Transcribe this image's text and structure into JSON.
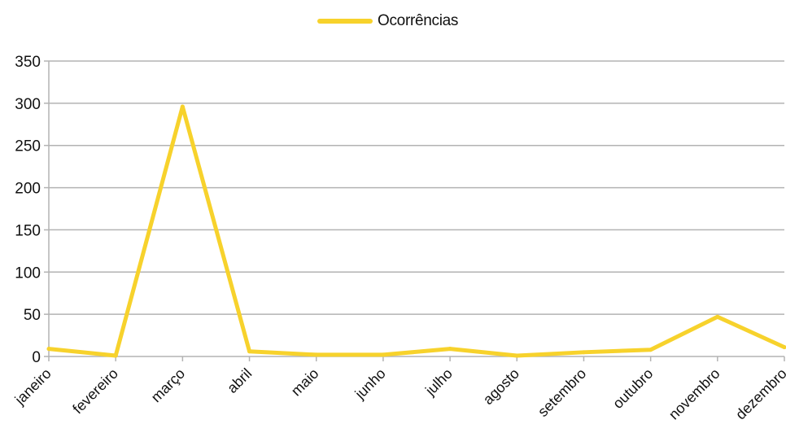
{
  "colors": {
    "series": "#F7D22C",
    "grid": "#B3B3B3",
    "axis": "#B3B3B3",
    "text": "#111111"
  },
  "chart_data": {
    "type": "line",
    "title": "",
    "xlabel": "",
    "ylabel": "",
    "categories": [
      "janeiro",
      "fevereiro",
      "março",
      "abril",
      "maio",
      "junho",
      "julho",
      "agosto",
      "setembro",
      "outubro",
      "novembro",
      "dezembro"
    ],
    "series": [
      {
        "name": "Ocorrências",
        "values": [
          9,
          1,
          296,
          6,
          2,
          2,
          9,
          1,
          5,
          8,
          47,
          11
        ]
      }
    ],
    "ylim": [
      0,
      350
    ],
    "yticks": [
      0,
      50,
      100,
      150,
      200,
      250,
      300,
      350
    ],
    "grid": true,
    "legend": "top-center"
  }
}
